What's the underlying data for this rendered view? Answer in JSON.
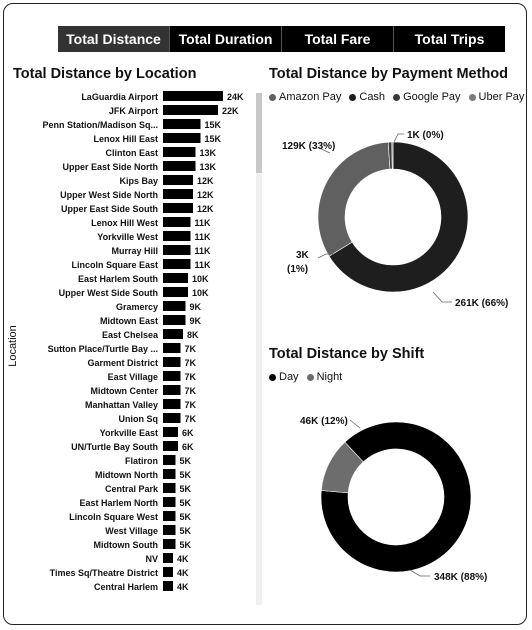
{
  "tabs": [
    {
      "label": "Total Distance",
      "active": true
    },
    {
      "label": "Total Duration",
      "active": false
    },
    {
      "label": "Total Fare",
      "active": false
    },
    {
      "label": "Total Trips",
      "active": false
    }
  ],
  "location_chart": {
    "title": "Total Distance by Location",
    "ylabel": "Location"
  },
  "payment_chart": {
    "title": "Total Distance by Payment Method",
    "legend": [
      {
        "name": "Amazon Pay",
        "color": "#606060"
      },
      {
        "name": "Cash",
        "color": "#1e1e1e"
      },
      {
        "name": "Google Pay",
        "color": "#3a3a3a"
      },
      {
        "name": "Uber Pay",
        "color": "#7a7a7a"
      }
    ]
  },
  "shift_chart": {
    "title": "Total Distance by Shift",
    "legend": [
      {
        "name": "Day",
        "color": "#000000"
      },
      {
        "name": "Night",
        "color": "#6d6d6d"
      }
    ]
  },
  "chart_data": [
    {
      "type": "bar",
      "orientation": "horizontal",
      "categories": [
        "LaGuardia Airport",
        "JFK Airport",
        "Penn Station/Madison Sq...",
        "Lenox Hill East",
        "Clinton East",
        "Upper East Side North",
        "Kips Bay",
        "Upper West Side North",
        "Upper East Side South",
        "Lenox Hill West",
        "Yorkville West",
        "Murray Hill",
        "Lincoln Square East",
        "East Harlem South",
        "Upper West Side South",
        "Gramercy",
        "Midtown East",
        "East Chelsea",
        "Sutton Place/Turtle Bay ...",
        "Garment District",
        "East Village",
        "Midtown Center",
        "Manhattan Valley",
        "Union Sq",
        "Yorkville East",
        "UN/Turtle Bay South",
        "Flatiron",
        "Midtown North",
        "Central Park",
        "East Harlem North",
        "Lincoln Square West",
        "West Village",
        "Midtown South",
        "NV",
        "Times Sq/Theatre District",
        "Central Harlem"
      ],
      "values": [
        24,
        22,
        15,
        15,
        13,
        13,
        12,
        12,
        12,
        11,
        11,
        11,
        11,
        10,
        10,
        9,
        9,
        8,
        7,
        7,
        7,
        7,
        7,
        7,
        6,
        6,
        5,
        5,
        5,
        5,
        5,
        5,
        5,
        4,
        4,
        4
      ],
      "labels": [
        "24K",
        "22K",
        "15K",
        "15K",
        "13K",
        "13K",
        "12K",
        "12K",
        "12K",
        "11K",
        "11K",
        "11K",
        "11K",
        "10K",
        "10K",
        "9K",
        "9K",
        "8K",
        "7K",
        "7K",
        "7K",
        "7K",
        "7K",
        "7K",
        "6K",
        "6K",
        "5K",
        "5K",
        "5K",
        "5K",
        "5K",
        "5K",
        "5K",
        "4K",
        "4K",
        "4K"
      ],
      "unit": "K",
      "bar_color": "#000000"
    },
    {
      "type": "pie",
      "variant": "donut",
      "slices": [
        {
          "name": "Cash",
          "value": 261,
          "label": "261K (66%)",
          "color": "#1e1e1e"
        },
        {
          "name": "Amazon Pay",
          "value": 129,
          "label": "129K (33%)",
          "color": "#606060"
        },
        {
          "name": "Google Pay",
          "value": 3,
          "label_line1": "3K",
          "label_line2": "(1%)",
          "color": "#3a3a3a"
        },
        {
          "name": "Uber Pay",
          "value": 1,
          "label": "1K (0%)",
          "color": "#7a7a7a"
        }
      ]
    },
    {
      "type": "pie",
      "variant": "donut",
      "slices": [
        {
          "name": "Day",
          "value": 348,
          "label": "348K (88%)",
          "color": "#000000"
        },
        {
          "name": "Night",
          "value": 46,
          "label": "46K (12%)",
          "color": "#6d6d6d"
        }
      ]
    }
  ]
}
